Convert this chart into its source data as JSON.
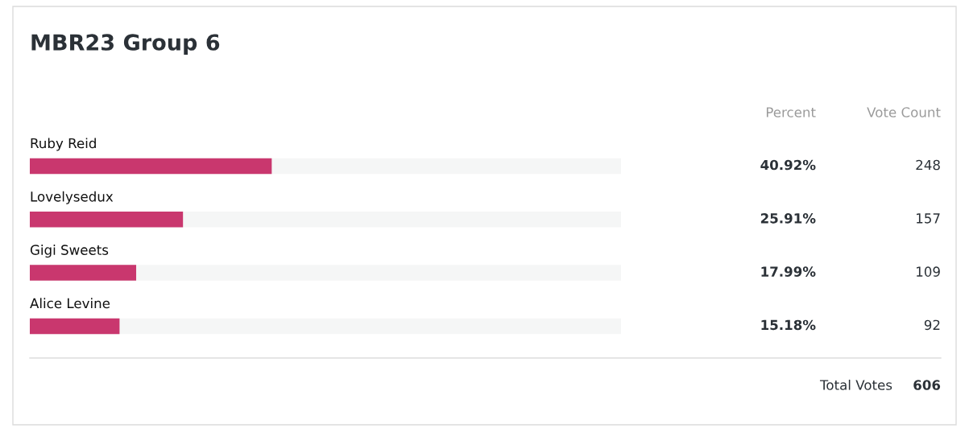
{
  "chart_data": {
    "type": "bar",
    "orientation": "horizontal",
    "title": "MBR23 Group 6",
    "categories": [
      "Ruby Reid",
      "Lovelysedux",
      "Gigi Sweets",
      "Alice Levine"
    ],
    "values": [
      40.92,
      25.91,
      17.99,
      15.18
    ],
    "value_labels": [
      "40.92%",
      "25.91%",
      "17.99%",
      "15.18%"
    ],
    "color": "#c9376e",
    "xlim": [
      0,
      100
    ],
    "tick_labels": "y",
    "annotations": [
      "Percent",
      "Vote Count",
      "248",
      "157",
      "109",
      "92",
      "Total Votes",
      "606"
    ]
  }
}
